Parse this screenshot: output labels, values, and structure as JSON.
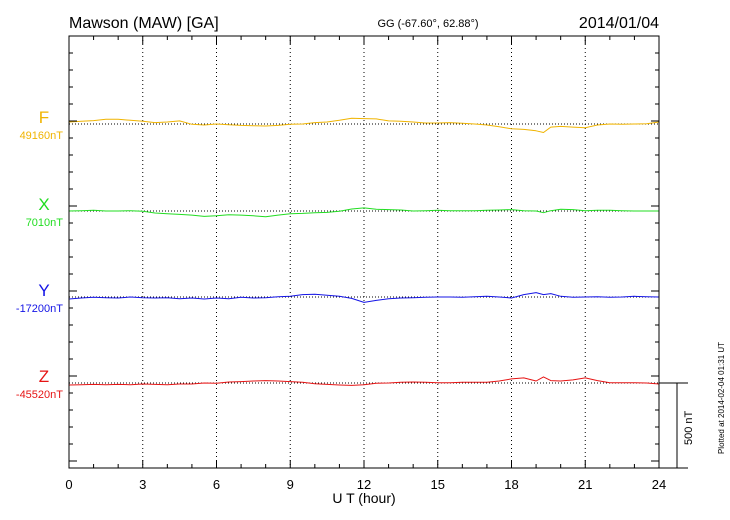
{
  "header": {
    "station": "Mawson (MAW)  [GA]",
    "coords": "GG (-67.60°,  62.88°)",
    "date": "2014/01/04"
  },
  "footer": {
    "plotted_note": "Plotted at 2014-02-04 01:31  UT"
  },
  "chart_data": {
    "type": "line",
    "xlabel": "U T (hour)",
    "xlim": [
      0,
      24
    ],
    "x_ticks": [
      "0",
      "3",
      "6",
      "9",
      "12",
      "15",
      "18",
      "21",
      "24"
    ],
    "grid": "dotted vertical every 3 h; dotted baseline per component",
    "scale_bar": {
      "label": "500 nT",
      "value_nT": 500
    },
    "series": [
      {
        "name": "F",
        "baseline": "49160nT",
        "baseline_nT": 49160,
        "color": "#f0b400",
        "x": [
          0,
          0.5,
          1,
          1.5,
          2,
          2.5,
          3,
          3.5,
          4,
          4.5,
          5,
          5.5,
          6,
          6.5,
          7,
          7.5,
          8,
          8.5,
          9,
          9.5,
          10,
          10.5,
          11,
          11.5,
          12,
          12.5,
          13,
          13.5,
          14,
          14.5,
          15,
          15.5,
          16,
          16.5,
          17,
          17.5,
          18,
          18.5,
          19,
          19.3,
          19.6,
          20,
          20.5,
          21,
          21.5,
          22,
          22.5,
          23,
          23.5,
          24
        ],
        "y": [
          49172,
          49176,
          49180,
          49188,
          49188,
          49182,
          49176,
          49168,
          49172,
          49178,
          49158,
          49154,
          49160,
          49156,
          49152,
          49150,
          49148,
          49152,
          49158,
          49160,
          49168,
          49172,
          49182,
          49194,
          49192,
          49190,
          49178,
          49176,
          49172,
          49166,
          49166,
          49168,
          49164,
          49160,
          49154,
          49144,
          49132,
          49128,
          49120,
          49110,
          49142,
          49146,
          49142,
          49138,
          49154,
          49160,
          49158,
          49160,
          49162,
          49172
        ]
      },
      {
        "name": "X",
        "baseline": "7010nT",
        "baseline_nT": 7010,
        "color": "#22dd22",
        "x": [
          0,
          0.5,
          1,
          1.5,
          2,
          2.5,
          3,
          3.5,
          4,
          4.5,
          5,
          5.5,
          6,
          6.5,
          7,
          7.5,
          8,
          8.5,
          9,
          9.5,
          10,
          10.5,
          11,
          11.5,
          12,
          12.5,
          13,
          13.5,
          14,
          14.5,
          15,
          15.5,
          16,
          16.5,
          17,
          17.5,
          18,
          18.5,
          19,
          19.3,
          19.6,
          20,
          20.5,
          21,
          21.5,
          22,
          22.5,
          23,
          23.5,
          24
        ],
        "y": [
          7010,
          7012,
          7014,
          7010,
          7010,
          7012,
          7008,
          6998,
          6994,
          6990,
          6986,
          6978,
          6982,
          6988,
          6986,
          6982,
          6976,
          6986,
          6994,
          6996,
          7000,
          7002,
          7008,
          7022,
          7028,
          7020,
          7018,
          7016,
          7010,
          7012,
          7014,
          7012,
          7012,
          7012,
          7014,
          7016,
          7018,
          7012,
          7010,
          7000,
          7012,
          7020,
          7018,
          7012,
          7014,
          7014,
          7012,
          7010,
          7010,
          7010
        ]
      },
      {
        "name": "Y",
        "baseline": "-17200nT",
        "baseline_nT": -17200,
        "color": "#1414e6",
        "x": [
          0,
          0.5,
          1,
          1.5,
          2,
          2.5,
          3,
          3.5,
          4,
          4.5,
          5,
          5.5,
          6,
          6.5,
          7,
          7.5,
          8,
          8.5,
          9,
          9.5,
          10,
          10.5,
          11,
          11.5,
          12,
          12.5,
          13,
          13.5,
          14,
          14.5,
          15,
          15.5,
          16,
          16.5,
          17,
          17.5,
          18,
          18.5,
          19,
          19.3,
          19.6,
          20,
          20.5,
          21,
          21.5,
          22,
          22.5,
          23,
          23.5,
          24
        ],
        "y": [
          -17212,
          -17206,
          -17202,
          -17204,
          -17206,
          -17200,
          -17204,
          -17206,
          -17204,
          -17210,
          -17206,
          -17212,
          -17206,
          -17210,
          -17202,
          -17206,
          -17204,
          -17198,
          -17196,
          -17186,
          -17184,
          -17190,
          -17196,
          -17208,
          -17232,
          -17220,
          -17210,
          -17206,
          -17204,
          -17202,
          -17200,
          -17200,
          -17202,
          -17198,
          -17196,
          -17200,
          -17206,
          -17186,
          -17174,
          -17186,
          -17180,
          -17196,
          -17202,
          -17200,
          -17198,
          -17202,
          -17200,
          -17196,
          -17198,
          -17200
        ]
      },
      {
        "name": "Z",
        "baseline": "-45520nT",
        "baseline_nT": -45520,
        "color": "#e61414",
        "x": [
          0,
          0.5,
          1,
          1.5,
          2,
          2.5,
          3,
          3.5,
          4,
          4.5,
          5,
          5.5,
          6,
          6.5,
          7,
          7.5,
          8,
          8.5,
          9,
          9.5,
          10,
          10.5,
          11,
          11.5,
          12,
          12.5,
          13,
          13.5,
          14,
          14.5,
          15,
          15.5,
          16,
          16.5,
          17,
          17.5,
          18,
          18.5,
          19,
          19.3,
          19.6,
          20,
          20.5,
          21,
          21.5,
          22,
          22.5,
          23,
          23.5,
          24
        ],
        "y": [
          -45532,
          -45530,
          -45528,
          -45530,
          -45528,
          -45530,
          -45526,
          -45528,
          -45530,
          -45526,
          -45526,
          -45520,
          -45522,
          -45514,
          -45512,
          -45508,
          -45506,
          -45508,
          -45512,
          -45516,
          -45524,
          -45528,
          -45532,
          -45534,
          -45530,
          -45522,
          -45520,
          -45516,
          -45514,
          -45516,
          -45518,
          -45518,
          -45516,
          -45516,
          -45516,
          -45508,
          -45496,
          -45490,
          -45508,
          -45484,
          -45506,
          -45508,
          -45502,
          -45490,
          -45506,
          -45518,
          -45518,
          -45518,
          -45520,
          -45526
        ]
      }
    ]
  }
}
